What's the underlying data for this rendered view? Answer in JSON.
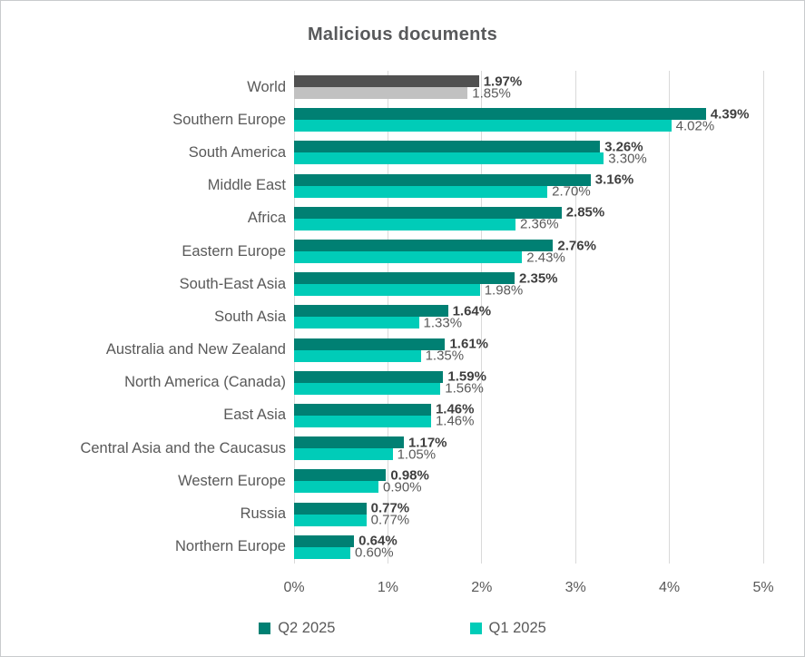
{
  "title": "Malicious documents",
  "chart_data": {
    "type": "bar",
    "orientation": "horizontal",
    "title": "Malicious documents",
    "xlabel": "",
    "ylabel": "",
    "xlim": [
      0,
      5
    ],
    "x_ticks": [
      "0%",
      "1%",
      "2%",
      "3%",
      "4%",
      "5%"
    ],
    "grid": true,
    "legend_position": "bottom",
    "value_label_format": "two-decimal percent",
    "categories": [
      "World",
      "Southern Europe",
      "South America",
      "Middle East",
      "Africa",
      "Eastern Europe",
      "South-East Asia",
      "South Asia",
      "Australia and New Zealand",
      "North America (Canada)",
      "East Asia",
      "Central Asia and the Caucasus",
      "Western Europe",
      "Russia",
      "Northern Europe"
    ],
    "series": [
      {
        "name": "Q2 2025",
        "color": "#008073",
        "values": [
          1.97,
          4.39,
          3.26,
          3.16,
          2.85,
          2.76,
          2.35,
          1.64,
          1.61,
          1.59,
          1.46,
          1.17,
          0.98,
          0.77,
          0.64
        ]
      },
      {
        "name": "Q1 2025",
        "color": "#00CCB8",
        "values": [
          1.85,
          4.02,
          3.3,
          2.7,
          2.36,
          2.43,
          1.98,
          1.33,
          1.35,
          1.56,
          1.46,
          1.05,
          0.9,
          0.77,
          0.6
        ]
      }
    ],
    "world_row_colors": {
      "Q2 2025": "#515151",
      "Q1 2025": "#C1C1C1"
    }
  },
  "legend": {
    "items": [
      {
        "label": "Q2 2025",
        "color": "#008073"
      },
      {
        "label": "Q1 2025",
        "color": "#00CCB8"
      }
    ]
  },
  "colors": {
    "title_text": "#58595b",
    "axis_text": "#595959",
    "gridline": "#d9d9d9",
    "value_primary_text": "#3f3f3f",
    "value_secondary_text": "#595959"
  }
}
